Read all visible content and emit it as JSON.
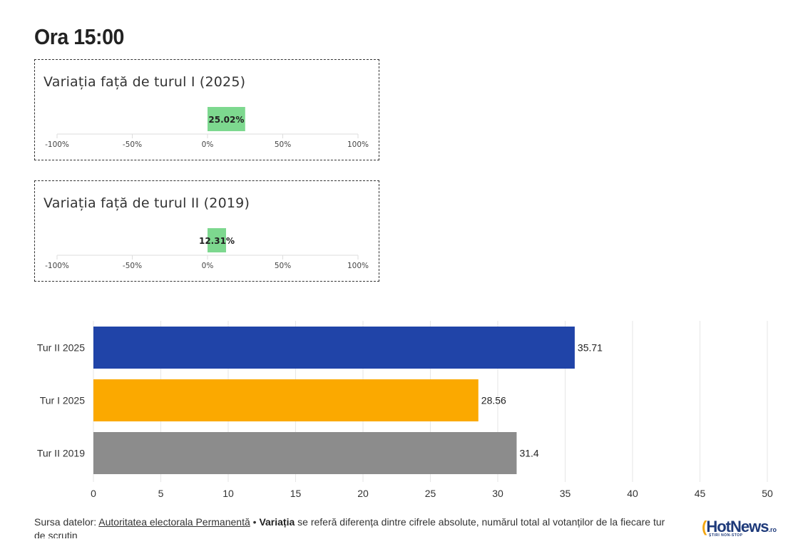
{
  "header": {
    "title": "Ora 15:00"
  },
  "variation_cards": [
    {
      "title": "Variația față de turul I (2025)",
      "value": 25.02,
      "value_label": "25.02%",
      "ticks": [
        "-100%",
        "-50%",
        "0%",
        "50%",
        "100%"
      ],
      "range": [
        -100,
        100
      ]
    },
    {
      "title": "Variația față de turul II (2019)",
      "value": 12.31,
      "value_label": "12.31%",
      "ticks": [
        "-100%",
        "-50%",
        "0%",
        "50%",
        "100%"
      ],
      "range": [
        -100,
        100
      ]
    }
  ],
  "colors": {
    "positive_bar": "#7dd88f",
    "tur_ii_2025": "#2044a8",
    "tur_i_2025": "#fba900",
    "tur_ii_2019": "#8c8c8c",
    "grid": "#e6e6e6"
  },
  "chart_data": [
    {
      "type": "bar",
      "orientation": "horizontal",
      "title": "Variația față de turul I (2025)",
      "categories": [
        ""
      ],
      "values": [
        25.02
      ],
      "data_labels": [
        "25.02%"
      ],
      "xlim": [
        -100,
        100
      ],
      "ticks": [
        "-100%",
        "-50%",
        "0%",
        "50%",
        "100%"
      ]
    },
    {
      "type": "bar",
      "orientation": "horizontal",
      "title": "Variația față de turul II (2019)",
      "categories": [
        ""
      ],
      "values": [
        12.31
      ],
      "data_labels": [
        "12.31%"
      ],
      "xlim": [
        -100,
        100
      ],
      "ticks": [
        "-100%",
        "-50%",
        "0%",
        "50%",
        "100%"
      ]
    },
    {
      "type": "bar",
      "orientation": "horizontal",
      "categories": [
        "Tur II 2025",
        "Tur I 2025",
        "Tur II 2019"
      ],
      "values": [
        35.71,
        28.56,
        31.4
      ],
      "data_labels": [
        "35.71",
        "28.56",
        "31.4"
      ],
      "bar_colors": [
        "#2044a8",
        "#fba900",
        "#8c8c8c"
      ],
      "xlim": [
        0,
        50
      ],
      "xticks": [
        0,
        5,
        10,
        15,
        20,
        25,
        30,
        35,
        40,
        45,
        50
      ],
      "grid": true
    }
  ],
  "footer": {
    "source_prefix": "Sursa datelor: ",
    "source_link": "Autoritatea electorala Permanentă",
    "separator": " • ",
    "note_bold": "Variația",
    "note_text": " se referă diferența dintre cifrele absolute, numărul total al votanților de la fiecare tur de scrutin"
  },
  "logo": {
    "mark": "(",
    "name": "HotNews",
    "suffix": ".ro",
    "tagline": "ȘTIRI NON-STOP"
  }
}
